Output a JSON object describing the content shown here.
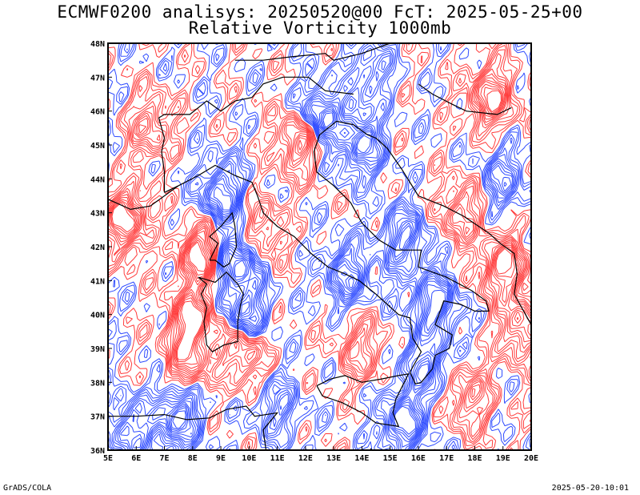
{
  "title": {
    "line1": "ECMWF0200 analisys: 20250520@00 FcT: 2025-05-25+00",
    "line2": "Relative Vorticity 1000mb"
  },
  "footer": {
    "left": "GrADS/COLA",
    "right": "2025-05-20-10:01"
  },
  "map": {
    "lon_range": [
      5,
      20
    ],
    "lat_range": [
      36,
      48
    ],
    "x_ticks": [
      "5E",
      "6E",
      "7E",
      "8E",
      "9E",
      "10E",
      "11E",
      "12E",
      "13E",
      "14E",
      "15E",
      "16E",
      "17E",
      "18E",
      "19E",
      "20E"
    ],
    "y_ticks": [
      "36N",
      "37N",
      "38N",
      "39N",
      "40N",
      "41N",
      "42N",
      "43N",
      "44N",
      "45N",
      "46N",
      "47N",
      "48N"
    ],
    "colors": {
      "positive": "#ff3b3b",
      "negative": "#2e4bff",
      "coast": "#000000",
      "frame": "#000000"
    },
    "vorticity_centers": [
      {
        "lon": 9.0,
        "lat": 43.6,
        "sign": -1,
        "strength": 1.0
      },
      {
        "lon": 8.3,
        "lat": 41.8,
        "sign": 1,
        "strength": 1.0
      },
      {
        "lon": 9.6,
        "lat": 41.5,
        "sign": -1,
        "strength": 1.0
      },
      {
        "lon": 8.0,
        "lat": 39.8,
        "sign": 1,
        "strength": 1.0
      },
      {
        "lon": 9.9,
        "lat": 40.0,
        "sign": -1,
        "strength": 0.9
      },
      {
        "lon": 9.8,
        "lat": 38.9,
        "sign": 1,
        "strength": 0.9
      },
      {
        "lon": 11.8,
        "lat": 45.1,
        "sign": 1,
        "strength": 1.0
      },
      {
        "lon": 12.5,
        "lat": 45.8,
        "sign": -1,
        "strength": 1.0
      },
      {
        "lon": 14.0,
        "lat": 45.0,
        "sign": -1,
        "strength": 0.9
      },
      {
        "lon": 15.5,
        "lat": 42.2,
        "sign": -1,
        "strength": 0.9
      },
      {
        "lon": 13.5,
        "lat": 41.2,
        "sign": -1,
        "strength": 0.8
      },
      {
        "lon": 16.6,
        "lat": 40.3,
        "sign": -1,
        "strength": 1.0
      },
      {
        "lon": 15.4,
        "lat": 36.8,
        "sign": -1,
        "strength": 1.0
      },
      {
        "lon": 16.2,
        "lat": 38.5,
        "sign": -1,
        "strength": 0.8
      },
      {
        "lon": 19.0,
        "lat": 41.4,
        "sign": 1,
        "strength": 1.0
      },
      {
        "lon": 19.6,
        "lat": 39.6,
        "sign": 1,
        "strength": 0.9
      },
      {
        "lon": 18.6,
        "lat": 46.4,
        "sign": 1,
        "strength": 0.9
      },
      {
        "lon": 5.6,
        "lat": 42.8,
        "sign": 1,
        "strength": 1.0
      },
      {
        "lon": 6.5,
        "lat": 45.6,
        "sign": 1,
        "strength": 0.7
      },
      {
        "lon": 7.5,
        "lat": 37.1,
        "sign": -1,
        "strength": 1.0
      },
      {
        "lon": 5.8,
        "lat": 36.6,
        "sign": -1,
        "strength": 0.8
      },
      {
        "lon": 7.8,
        "lat": 38.5,
        "sign": 1,
        "strength": 0.7
      },
      {
        "lon": 11.0,
        "lat": 37.2,
        "sign": -1,
        "strength": 0.6
      },
      {
        "lon": 14.0,
        "lat": 39.0,
        "sign": 1,
        "strength": 0.6
      },
      {
        "lon": 17.5,
        "lat": 43.0,
        "sign": 1,
        "strength": 0.7
      },
      {
        "lon": 17.8,
        "lat": 37.5,
        "sign": 1,
        "strength": 0.7
      },
      {
        "lon": 14.3,
        "lat": 47.2,
        "sign": -1,
        "strength": 0.6
      },
      {
        "lon": 19.0,
        "lat": 44.0,
        "sign": -1,
        "strength": 0.6
      },
      {
        "lon": 10.5,
        "lat": 42.5,
        "sign": 1,
        "strength": 0.6
      }
    ]
  }
}
